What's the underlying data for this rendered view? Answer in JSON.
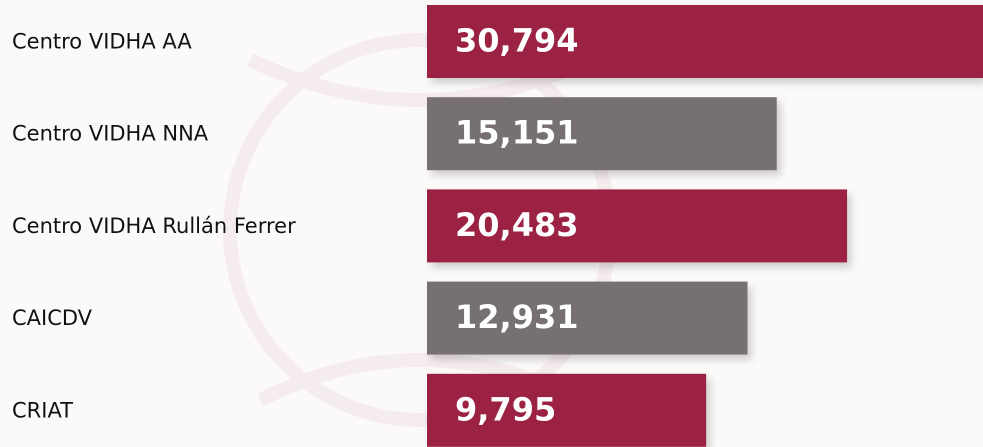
{
  "chart_data": {
    "type": "bar",
    "orientation": "horizontal",
    "categories": [
      "Centro VIDHA AA",
      "Centro VIDHA NNA",
      "Centro VIDHA Rullán Ferrer",
      "CAICDV",
      "CRIAT"
    ],
    "values": [
      30794,
      15151,
      20483,
      12931,
      9795
    ],
    "value_labels": [
      "30,794",
      "15,151",
      "20,483",
      "12,931",
      "9,795"
    ],
    "colors": [
      "#9b2143",
      "#77706f",
      "#9b2143",
      "#77706f",
      "#9b2143"
    ]
  }
}
